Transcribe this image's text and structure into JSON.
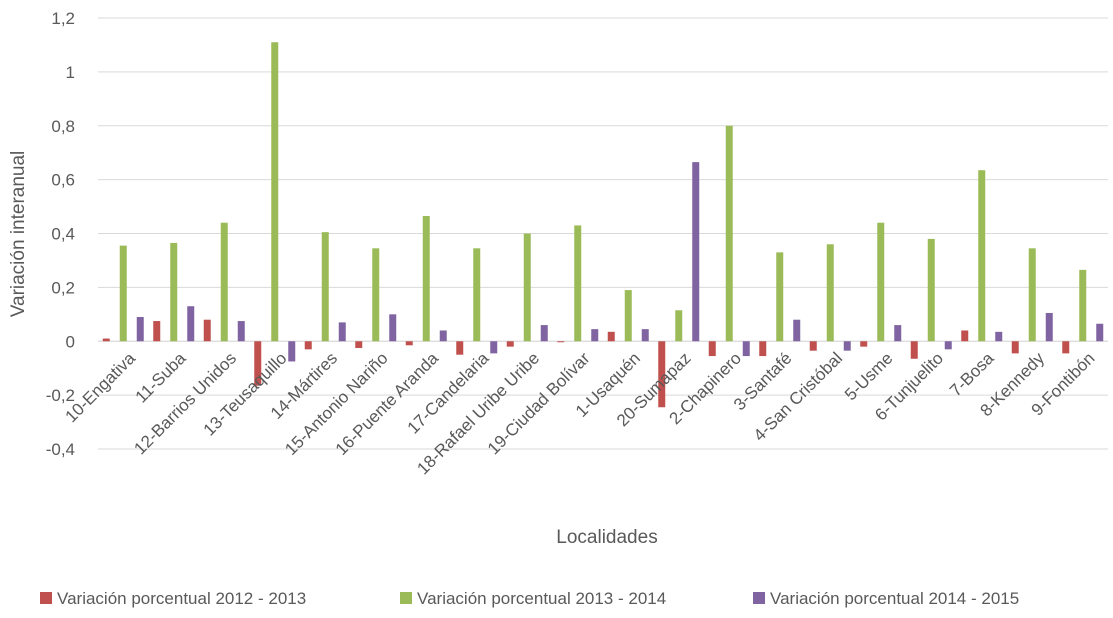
{
  "chart_data": {
    "type": "bar",
    "title": "",
    "xlabel": "Localidades",
    "ylabel": "Variación interanual",
    "ylim": [
      -0.4,
      1.2
    ],
    "yticks": [
      -0.4,
      -0.2,
      0,
      0.2,
      0.4,
      0.6,
      0.8,
      1,
      1.2
    ],
    "ytick_labels": [
      "-0,4",
      "-0,2",
      "0",
      "0,2",
      "0,4",
      "0,6",
      "0,8",
      "1",
      "1,2"
    ],
    "grid": true,
    "legend_position": "bottom",
    "categories": [
      "10-Engativa",
      "11-Suba",
      "12-Barrios Unidos",
      "13-Teusaquillo",
      "14-Mártires",
      "15-Antonio Nariño",
      "16-Puente Aranda",
      "17-Candelaria",
      "18-Rafael Uribe Uribe",
      "19-Ciudad Bolívar",
      "1-Usaquén",
      "20-Sumapaz",
      "2-Chapinero",
      "3-Santafé",
      "4-San Cristóbal",
      "5-Usme",
      "6-Tunjuelito",
      "7-Bosa",
      "8-Kennedy",
      "9-Fontibón"
    ],
    "series": [
      {
        "name": "Variación porcentual 2012 - 2013",
        "color": "#c0504d",
        "values": [
          0.01,
          0.075,
          0.08,
          -0.165,
          -0.03,
          -0.025,
          -0.015,
          -0.05,
          -0.02,
          0.0,
          0.035,
          -0.245,
          -0.055,
          -0.055,
          -0.035,
          -0.02,
          -0.065,
          0.04,
          -0.045,
          -0.045
        ]
      },
      {
        "name": "Variación porcentual 2013 -  2014",
        "color": "#9bbb59",
        "values": [
          0.355,
          0.365,
          0.44,
          1.11,
          0.405,
          0.345,
          0.465,
          0.345,
          0.4,
          0.43,
          0.19,
          0.115,
          0.8,
          0.33,
          0.36,
          0.44,
          0.38,
          0.635,
          0.345,
          0.265
        ]
      },
      {
        "name": "Variación porcentual 2014 - 2015",
        "color": "#8064a2",
        "values": [
          0.09,
          0.13,
          0.075,
          -0.075,
          0.07,
          0.1,
          0.04,
          -0.045,
          0.06,
          0.045,
          0.045,
          0.665,
          -0.055,
          0.08,
          -0.035,
          0.06,
          -0.03,
          0.035,
          0.105,
          0.065
        ]
      }
    ]
  }
}
